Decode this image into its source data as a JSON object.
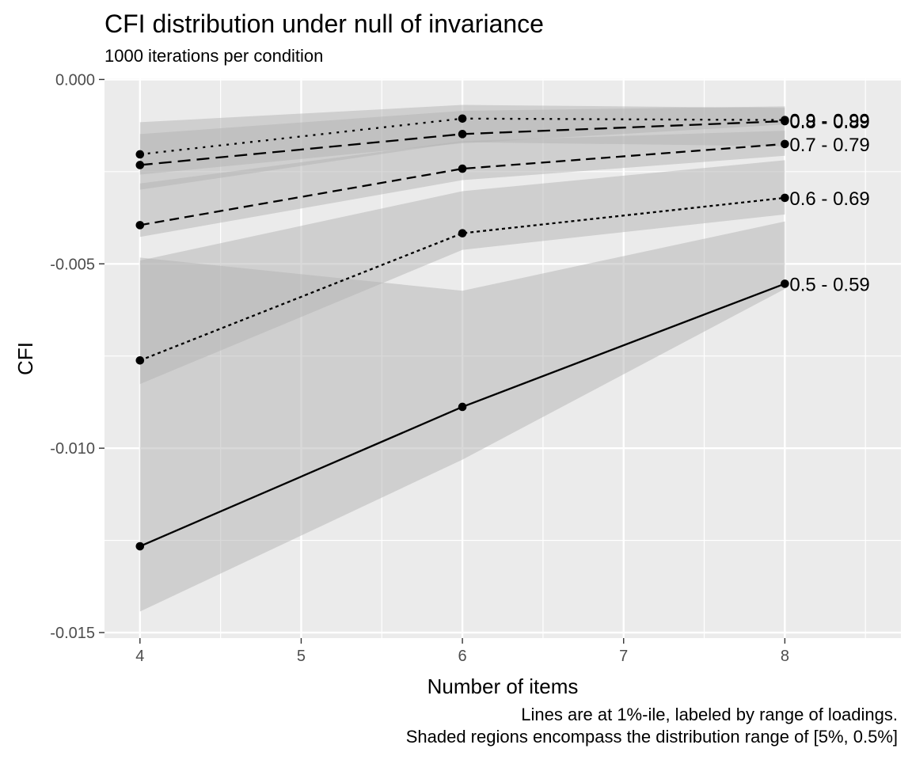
{
  "chart_data": {
    "type": "line",
    "title": "CFI distribution under null of invariance",
    "subtitle": "1000 iterations per condition",
    "xlabel": "Number of items",
    "ylabel": "CFI",
    "caption": [
      "Lines are at 1%-ile, labeled by range of loadings.",
      "Shaded regions encompass the distribution range of [5%, 0.5%]"
    ],
    "x": [
      4,
      6,
      8
    ],
    "xlim": [
      3.78,
      8.72
    ],
    "ylim": [
      -0.01515,
      3e-05
    ],
    "x_ticks": [
      4,
      5,
      6,
      7,
      8
    ],
    "x_tick_labels": [
      "4",
      "5",
      "6",
      "7",
      "8"
    ],
    "y_ticks": [
      0.0,
      -0.005,
      -0.01,
      -0.015
    ],
    "y_tick_labels": [
      "0.000",
      "-0.005",
      "-0.010",
      "-0.015"
    ],
    "grid": true,
    "legend": "none",
    "series": [
      {
        "name": "0.5 - 0.59",
        "linetype": "solid",
        "values": [
          -0.01266,
          -0.00888,
          -0.00554
        ],
        "band_upper": [
          -0.00483,
          -0.00573,
          -0.00385
        ],
        "band_lower": [
          -0.01443,
          -0.01031,
          -0.00568
        ]
      },
      {
        "name": "0.6 - 0.69",
        "linetype": "dotted",
        "values": [
          -0.00762,
          -0.00417,
          -0.00321
        ],
        "band_upper": [
          -0.00491,
          -0.00303,
          -0.00219
        ],
        "band_lower": [
          -0.00826,
          -0.00462,
          -0.00366
        ]
      },
      {
        "name": "0.7 - 0.79",
        "linetype": "dashed",
        "values": [
          -0.00395,
          -0.00242,
          -0.00175
        ],
        "band_upper": [
          -0.00282,
          -0.00167,
          -0.00139
        ],
        "band_lower": [
          -0.00427,
          -0.00273,
          -0.00207
        ]
      },
      {
        "name": "0.8 - 0.89",
        "linetype": "longdash",
        "values": [
          -0.00232,
          -0.00148,
          -0.00113
        ],
        "band_upper": [
          -0.00148,
          -0.00085,
          -0.00073
        ],
        "band_lower": [
          -0.00299,
          -0.0017,
          -0.00181
        ]
      },
      {
        "name": "0.9 - 0.99",
        "linetype": "dotted-spaced",
        "values": [
          -0.00203,
          -0.00106,
          -0.0011
        ],
        "band_upper": [
          -0.00116,
          -0.00069,
          -0.00077
        ],
        "band_lower": [
          -0.00258,
          -0.00173,
          -0.00122
        ]
      }
    ]
  }
}
